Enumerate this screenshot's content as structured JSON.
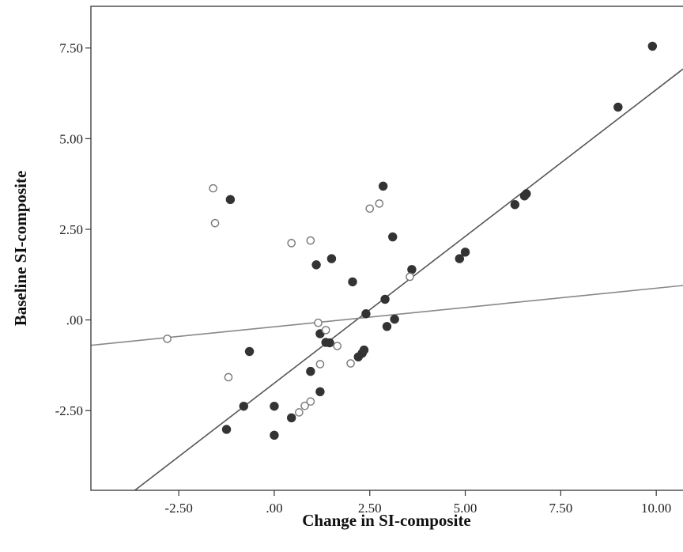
{
  "chart_data": {
    "type": "scatter",
    "xlabel": "Change in SI-composite",
    "ylabel": "Baseline SI-composite",
    "xlim": [
      -4.8,
      10.7
    ],
    "ylim": [
      -4.7,
      8.65
    ],
    "x_ticks": [
      {
        "value": -2.5,
        "label": "-2.50"
      },
      {
        "value": 0,
        "label": ".00"
      },
      {
        "value": 2.5,
        "label": "2.50"
      },
      {
        "value": 5,
        "label": "5.00"
      },
      {
        "value": 7.5,
        "label": "7.50"
      },
      {
        "value": 10,
        "label": "10.00"
      }
    ],
    "y_ticks": [
      {
        "value": -2.5,
        "label": "-2.50"
      },
      {
        "value": 0,
        "label": ".00"
      },
      {
        "value": 2.5,
        "label": "2.50"
      },
      {
        "value": 5,
        "label": "5.00"
      },
      {
        "value": 7.5,
        "label": "7.50"
      }
    ],
    "grid": false,
    "colors": {
      "filled_marker": "#333333",
      "open_marker": "#777777",
      "steep_line": "#555555",
      "shallow_line": "#888888"
    },
    "series": [
      {
        "marker": "filled",
        "points": [
          [
            9.9,
            7.55
          ],
          [
            9.0,
            5.87
          ],
          [
            6.6,
            3.48
          ],
          [
            6.55,
            3.42
          ],
          [
            6.3,
            3.18
          ],
          [
            5.0,
            1.87
          ],
          [
            4.85,
            1.69
          ],
          [
            3.6,
            1.39
          ],
          [
            2.85,
            3.69
          ],
          [
            3.1,
            2.29
          ],
          [
            2.9,
            0.57
          ],
          [
            2.95,
            -0.18
          ],
          [
            3.15,
            0.02
          ],
          [
            2.4,
            0.17
          ],
          [
            2.05,
            1.05
          ],
          [
            1.5,
            1.69
          ],
          [
            1.1,
            1.52
          ],
          [
            -1.15,
            3.32
          ],
          [
            1.2,
            -0.38
          ],
          [
            1.45,
            -0.63
          ],
          [
            1.35,
            -0.62
          ],
          [
            2.2,
            -1.02
          ],
          [
            2.3,
            -0.92
          ],
          [
            2.35,
            -0.83
          ],
          [
            -0.65,
            -0.87
          ],
          [
            0.95,
            -1.42
          ],
          [
            1.2,
            -1.98
          ],
          [
            -0.8,
            -2.38
          ],
          [
            0.0,
            -2.38
          ],
          [
            0.45,
            -2.7
          ],
          [
            -1.25,
            -3.02
          ],
          [
            0.0,
            -3.18
          ]
        ]
      },
      {
        "marker": "open",
        "points": [
          [
            -1.6,
            3.63
          ],
          [
            -1.55,
            2.67
          ],
          [
            0.45,
            2.12
          ],
          [
            0.95,
            2.19
          ],
          [
            2.5,
            3.07
          ],
          [
            2.75,
            3.21
          ],
          [
            3.55,
            1.19
          ],
          [
            1.15,
            -0.08
          ],
          [
            1.35,
            -0.28
          ],
          [
            1.65,
            -0.72
          ],
          [
            1.2,
            -1.22
          ],
          [
            2.0,
            -1.2
          ],
          [
            -2.8,
            -0.52
          ],
          [
            -1.2,
            -1.58
          ],
          [
            0.95,
            -2.25
          ],
          [
            0.8,
            -2.37
          ],
          [
            0.65,
            -2.55
          ]
        ]
      }
    ],
    "fit_lines": [
      {
        "style": "steep",
        "start": [
          -3.65,
          -4.7
        ],
        "end": [
          10.7,
          6.92
        ]
      },
      {
        "style": "shallow",
        "start": [
          -4.8,
          -0.7
        ],
        "end": [
          10.7,
          0.95
        ]
      }
    ]
  }
}
